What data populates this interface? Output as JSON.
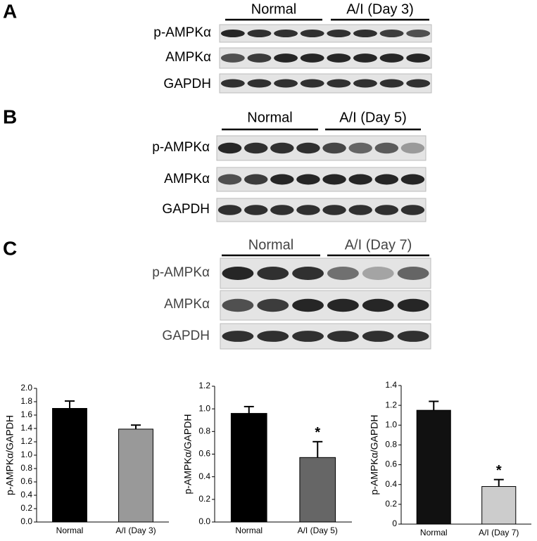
{
  "panels": [
    {
      "letter": "A",
      "groups": [
        "Normal",
        "A/I (Day 3)"
      ],
      "rows": [
        "p-AMPKα",
        "AMPKα",
        "GAPDH"
      ]
    },
    {
      "letter": "B",
      "groups": [
        "Normal",
        "A/I  (Day 5)"
      ],
      "rows": [
        "p-AMPKα",
        "AMPKα",
        "GAPDH"
      ]
    },
    {
      "letter": "C",
      "groups": [
        "Normal",
        "A/I  (Day 7)"
      ],
      "rows": [
        "p-AMPKα",
        "AMPKα",
        "GAPDH"
      ]
    }
  ],
  "chart_data": [
    {
      "type": "bar",
      "y_label": "p-AMPKα/GAPDH",
      "categories": [
        "Normal",
        "A/I (Day 3)"
      ],
      "values": [
        1.7,
        1.39
      ],
      "errors": [
        0.11,
        0.06
      ],
      "colors": [
        "#000000",
        "#999999"
      ],
      "annotations": [
        null,
        null
      ],
      "ylim": [
        0,
        2
      ],
      "yticks": [
        {
          "value": 0,
          "label": "0.0"
        },
        0.2,
        0.4,
        0.6,
        0.8,
        {
          "value": 1,
          "label": "1.0"
        },
        1.2,
        1.4,
        1.6,
        1.8,
        {
          "value": 2,
          "label": "2.0"
        }
      ]
    },
    {
      "type": "bar",
      "y_label": "p-AMPKα/GAPDH",
      "categories": [
        "Normal",
        "A/I (Day 5)"
      ],
      "values": [
        0.96,
        0.57
      ],
      "errors": [
        0.06,
        0.14
      ],
      "colors": [
        "#000000",
        "#666666"
      ],
      "annotations": [
        null,
        "*"
      ],
      "ylim": [
        0,
        1.2
      ],
      "yticks": [
        {
          "value": 0,
          "label": "0.0"
        },
        0.2,
        0.4,
        0.6,
        0.8,
        {
          "value": 1,
          "label": "1.0"
        },
        1.2
      ]
    },
    {
      "type": "bar",
      "y_label": "p-AMPKα/GAPDH",
      "categories": [
        "Normal",
        "A/I (Day 7)"
      ],
      "values": [
        1.15,
        0.38
      ],
      "errors": [
        0.09,
        0.07
      ],
      "colors": [
        "#111111",
        "#cccccc"
      ],
      "annotations": [
        null,
        "*"
      ],
      "ylim": [
        0,
        1.4
      ],
      "yticks": [
        0,
        0.2,
        0.4,
        0.6,
        0.8,
        {
          "value": 1,
          "label": "1.0"
        },
        1.2,
        1.4
      ]
    }
  ]
}
